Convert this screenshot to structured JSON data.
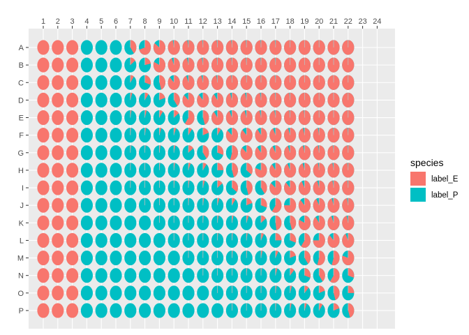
{
  "chart_data": {
    "type": "pie-grid",
    "columns": [
      "1",
      "2",
      "3",
      "4",
      "5",
      "6",
      "7",
      "8",
      "9",
      "10",
      "11",
      "12",
      "13",
      "14",
      "15",
      "16",
      "17",
      "18",
      "19",
      "20",
      "21",
      "22",
      "23",
      "24"
    ],
    "rows": [
      "A",
      "B",
      "C",
      "D",
      "E",
      "F",
      "G",
      "H",
      "I",
      "J",
      "K",
      "L",
      "M",
      "N",
      "O",
      "P"
    ],
    "filled_columns": 22,
    "x_axis_position": "top",
    "grid": true,
    "legend": {
      "title": "species",
      "position": "right",
      "items": [
        {
          "label": "label_E",
          "color": "#F8766D"
        },
        {
          "label": "label_P",
          "color": "#00BFC4"
        }
      ]
    },
    "colors": {
      "label_E": "#F8766D",
      "label_P": "#00BFC4",
      "panel": "#EBEBEB",
      "grid": "#FFFFFF",
      "slice_border": "#BFBFBF"
    },
    "value_description": "Fraction of label_E per well",
    "proportion_E": [
      [
        1,
        1,
        1,
        0,
        0,
        0,
        0.4,
        0.7,
        0.85,
        0.97,
        0.97,
        0.98,
        0.98,
        0.98,
        0.98,
        0.98,
        0.98,
        0.99,
        0.99,
        0.99,
        0.99,
        0.99
      ],
      [
        1,
        1,
        1,
        0,
        0,
        0,
        0.15,
        0.22,
        0.82,
        0.94,
        0.96,
        0.97,
        0.98,
        0.98,
        0.98,
        0.98,
        0.98,
        0.99,
        0.99,
        0.99,
        0.99,
        0.99
      ],
      [
        1,
        1,
        1,
        0,
        0,
        0,
        0.1,
        0.3,
        0.45,
        0.88,
        0.94,
        0.96,
        0.97,
        0.98,
        0.98,
        0.98,
        0.98,
        0.99,
        0.99,
        0.99,
        0.99,
        0.99
      ],
      [
        1,
        1,
        1,
        0,
        0,
        0,
        0.05,
        0.1,
        0.2,
        0.4,
        0.87,
        0.88,
        0.9,
        0.95,
        0.96,
        0.97,
        0.98,
        0.98,
        0.99,
        0.99,
        0.99,
        0.99
      ],
      [
        1,
        1,
        1,
        0,
        0,
        0,
        0.03,
        0.05,
        0.1,
        0.15,
        0.6,
        0.45,
        0.9,
        0.93,
        0.95,
        0.96,
        0.97,
        0.98,
        0.98,
        0.99,
        0.99,
        0.99
      ],
      [
        1,
        1,
        1,
        0,
        0,
        0,
        0.02,
        0.03,
        0.05,
        0.06,
        0.1,
        0.2,
        0.1,
        0.86,
        0.88,
        0.9,
        0.93,
        0.95,
        0.96,
        0.97,
        0.98,
        0.98
      ],
      [
        1,
        1,
        1,
        0,
        0,
        0,
        0.02,
        0.02,
        0.03,
        0.04,
        0.15,
        0.4,
        0.3,
        0.55,
        0.87,
        0.89,
        0.92,
        0.94,
        0.96,
        0.97,
        0.98,
        0.98
      ],
      [
        1,
        1,
        1,
        0,
        0,
        0,
        0.01,
        0.01,
        0.02,
        0.03,
        0.06,
        0.1,
        0.25,
        0.45,
        0.35,
        0.8,
        0.9,
        0.93,
        0.95,
        0.97,
        0.97,
        0.98
      ],
      [
        1,
        1,
        1,
        0,
        0,
        0,
        0.01,
        0.01,
        0.01,
        0.02,
        0.03,
        0.05,
        0.15,
        0.35,
        0.45,
        0.4,
        0.86,
        0.88,
        0.92,
        0.95,
        0.97,
        0.98
      ],
      [
        1,
        1,
        1,
        0,
        0,
        0,
        0,
        0.01,
        0.01,
        0.01,
        0.02,
        0.03,
        0.05,
        0.1,
        0.2,
        0.3,
        0.6,
        0.75,
        0.88,
        0.92,
        0.95,
        0.97
      ],
      [
        1,
        1,
        1,
        0,
        0,
        0,
        0,
        0,
        0.01,
        0.01,
        0.01,
        0.02,
        0.03,
        0.04,
        0.06,
        0.15,
        0.48,
        0.45,
        0.82,
        0.9,
        0.94,
        0.96
      ],
      [
        1,
        1,
        1,
        0,
        0,
        0,
        0,
        0,
        0,
        0.01,
        0.01,
        0.01,
        0.02,
        0.02,
        0.03,
        0.08,
        0.25,
        0.3,
        0.6,
        0.75,
        0.88,
        0.93
      ],
      [
        1,
        1,
        1,
        0,
        0,
        0,
        0,
        0,
        0,
        0,
        0.01,
        0.01,
        0.01,
        0.02,
        0.02,
        0.04,
        0.08,
        0.2,
        0.4,
        0.55,
        0.55,
        0.8
      ],
      [
        1,
        1,
        1,
        0,
        0,
        0,
        0,
        0,
        0,
        0,
        0,
        0.01,
        0.01,
        0.01,
        0.02,
        0.02,
        0.05,
        0.12,
        0.3,
        0.4,
        0.6,
        0.3
      ],
      [
        1,
        1,
        1,
        0,
        0,
        0,
        0,
        0,
        0,
        0,
        0,
        0,
        0.01,
        0.01,
        0.01,
        0.02,
        0.03,
        0.05,
        0.12,
        0.2,
        0.45,
        0.25
      ],
      [
        1,
        1,
        1,
        0,
        0,
        0,
        0,
        0,
        0,
        0,
        0,
        0,
        0,
        0.01,
        0.01,
        0.01,
        0.02,
        0.04,
        0.06,
        0.1,
        0.2,
        0.45
      ]
    ]
  }
}
